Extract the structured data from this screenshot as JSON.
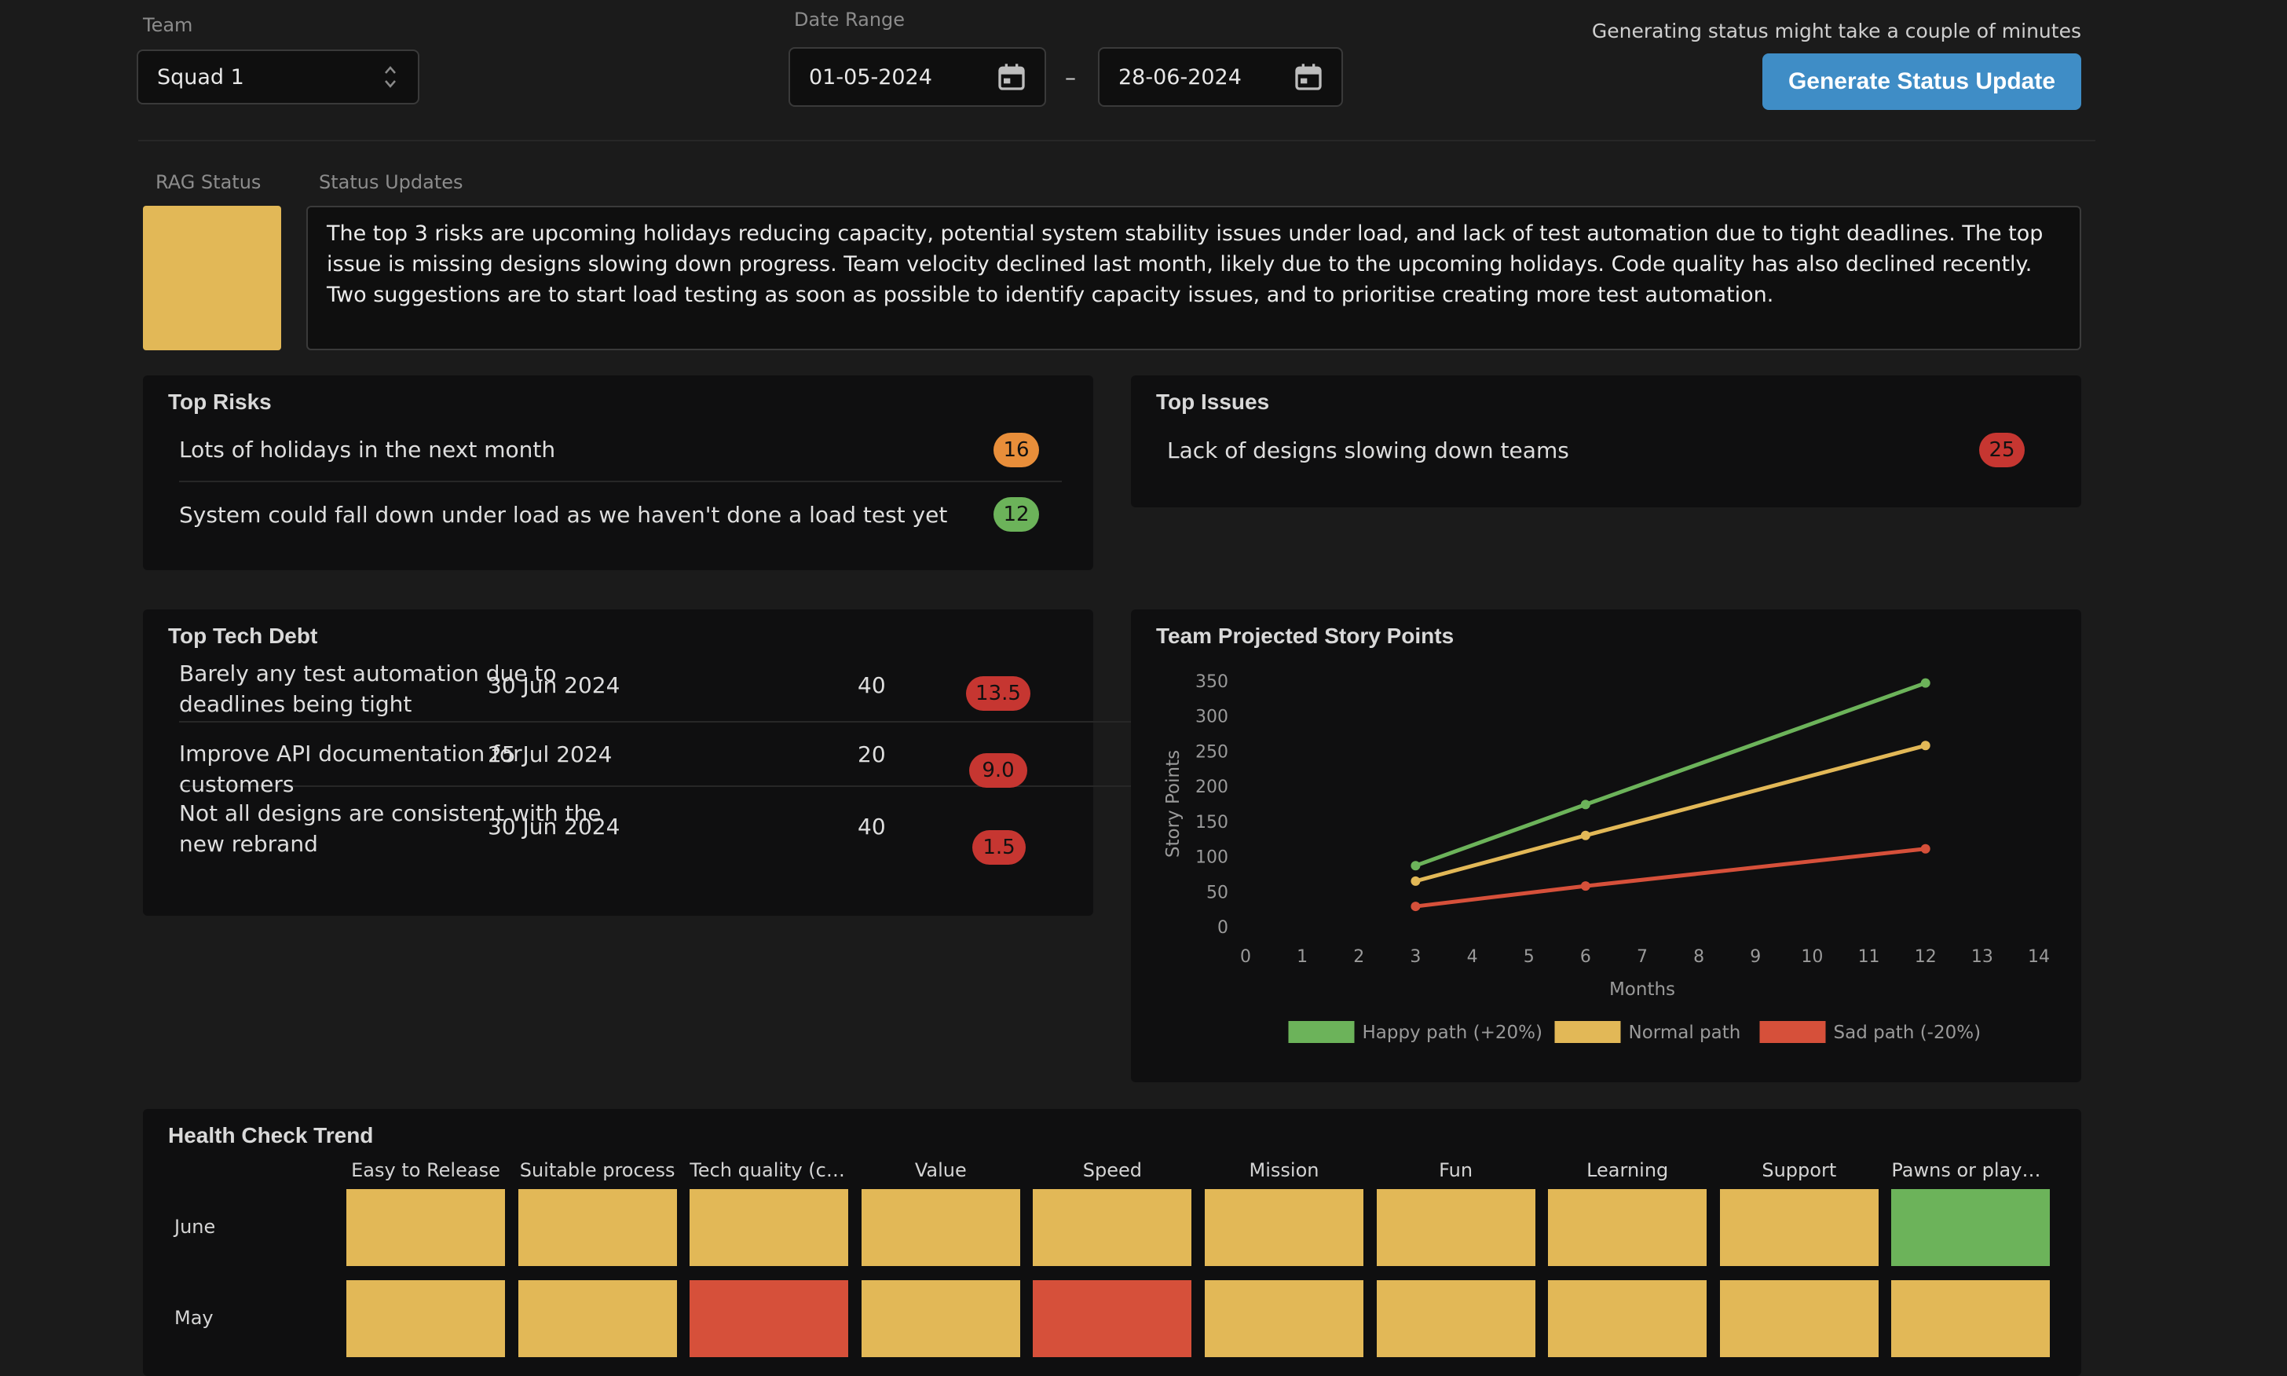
{
  "filters": {
    "team_label": "Team",
    "team_value": "Squad 1",
    "date_range_label": "Date Range",
    "date_from": "01-05-2024",
    "date_separator": "–",
    "date_to": "28-06-2024",
    "generating_note": "Generating status might take a couple of minutes",
    "generate_button": "Generate Status Update"
  },
  "status": {
    "rag_label": "RAG Status",
    "rag_color": "#e2b857",
    "updates_label": "Status Updates",
    "updates_text": "The top 3 risks are upcoming holidays reducing capacity, potential system stability issues under load, and lack of test automation due to tight deadlines. The top issue is missing designs slowing down progress. Team velocity declined last month, likely due to the upcoming holidays. Code quality has also declined recently. Two suggestions are to start load testing as soon as possible to identify capacity issues, and to prioritise creating more test automation."
  },
  "top_risks": {
    "title": "Top Risks",
    "items": [
      {
        "text": "Lots of holidays in the next month",
        "score": "16",
        "color": "#e88e3a"
      },
      {
        "text": "System could fall down under load as we haven't done a load test yet",
        "score": "12",
        "color": "#6cb35a"
      }
    ]
  },
  "top_issues": {
    "title": "Top Issues",
    "items": [
      {
        "text": "Lack of designs slowing down teams",
        "score": "25",
        "color": "#c63631"
      }
    ]
  },
  "tech_debt": {
    "title": "Top Tech Debt",
    "items": [
      {
        "text": "Barely any test automation due to deadlines being tight",
        "date": "30 Jun 2024",
        "points": "40",
        "score": "13.5"
      },
      {
        "text": "Improve API documentation for customers",
        "date": "25 Jul 2024",
        "points": "20",
        "score": "9.0"
      },
      {
        "text": "Not all designs are consistent with the new rebrand",
        "date": "30 Jun 2024",
        "points": "40",
        "score": "1.5"
      }
    ]
  },
  "projection_card": {
    "title": "Team Projected Story Points"
  },
  "chart_data": {
    "type": "line",
    "title": "Team Projected Story Points",
    "xlabel": "Months",
    "ylabel": "Story Points",
    "xlim": [
      0,
      14
    ],
    "ylim": [
      0,
      350
    ],
    "x_ticks": [
      0,
      1,
      2,
      3,
      4,
      5,
      6,
      7,
      8,
      9,
      10,
      11,
      12,
      13,
      14
    ],
    "y_ticks": [
      0,
      50,
      100,
      150,
      200,
      250,
      300,
      350
    ],
    "legend_position": "bottom",
    "grid": false,
    "series": [
      {
        "name": "Happy path (+20%)",
        "color": "#6cb35a",
        "x": [
          3,
          6,
          12
        ],
        "y": [
          87,
          174,
          347
        ]
      },
      {
        "name": "Normal path",
        "color": "#e2b857",
        "x": [
          3,
          6,
          12
        ],
        "y": [
          65,
          130,
          258
        ]
      },
      {
        "name": "Sad path (-20%)",
        "color": "#d6503a",
        "x": [
          3,
          6,
          12
        ],
        "y": [
          29,
          58,
          111
        ]
      }
    ]
  },
  "health_check": {
    "title": "Health Check Trend",
    "columns": [
      "Easy to Release",
      "Suitable process",
      "Tech quality (co...",
      "Value",
      "Speed",
      "Mission",
      "Fun",
      "Learning",
      "Support",
      "Pawns or players"
    ],
    "rows": [
      {
        "label": "June",
        "colors": [
          "#e2b857",
          "#e2b857",
          "#e2b857",
          "#e2b857",
          "#e2b857",
          "#e2b857",
          "#e2b857",
          "#e2b857",
          "#e2b857",
          "#6cb35a"
        ]
      },
      {
        "label": "May",
        "colors": [
          "#e2b857",
          "#e2b857",
          "#d6503a",
          "#e2b857",
          "#d6503a",
          "#e2b857",
          "#e2b857",
          "#e2b857",
          "#e2b857",
          "#e2b857"
        ]
      }
    ]
  }
}
